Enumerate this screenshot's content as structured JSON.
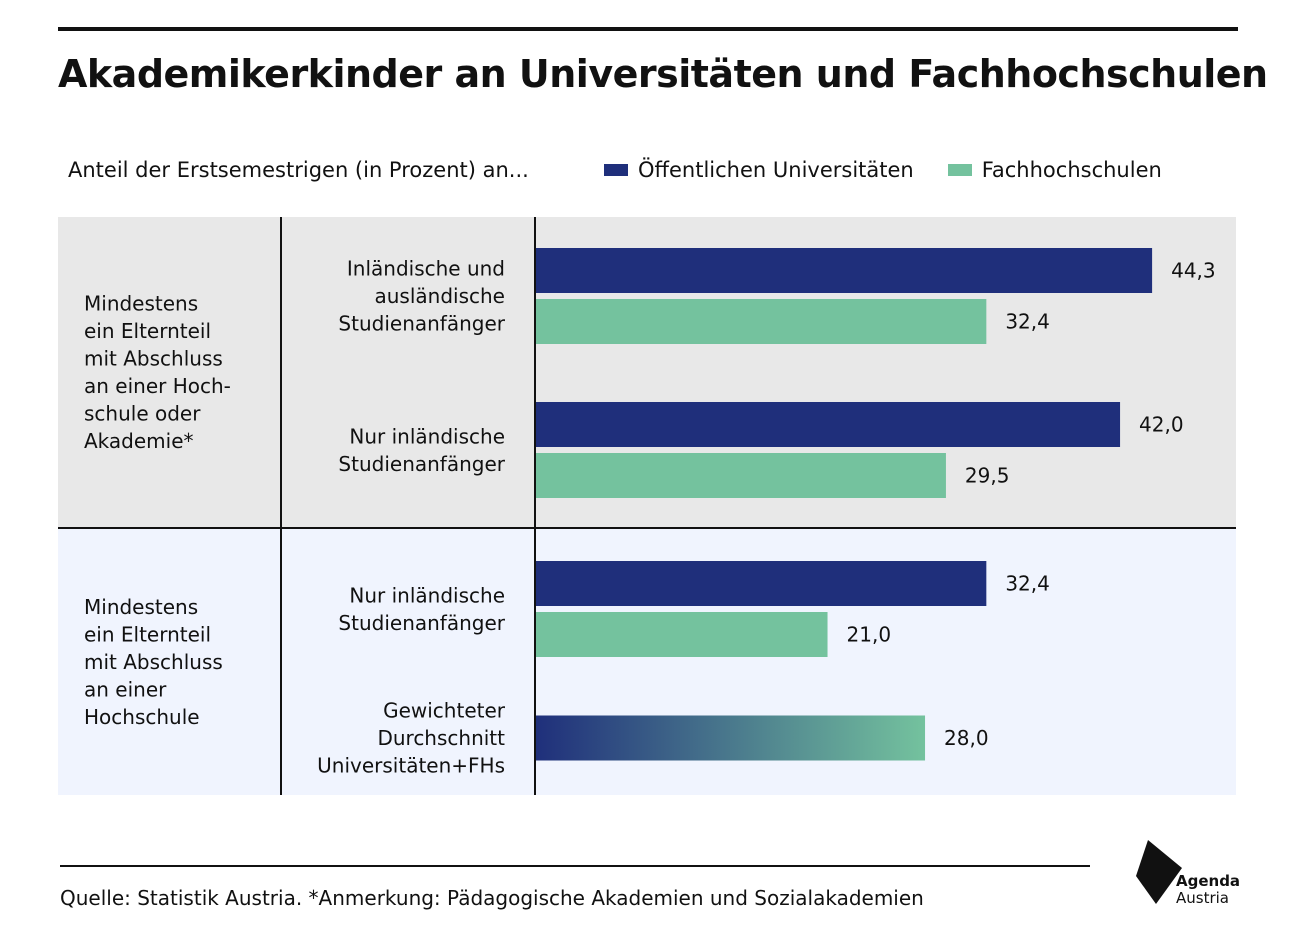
{
  "chart_data": {
    "type": "bar",
    "orientation": "horizontal",
    "title": "Akademikerkinder an Universitäten und Fachhochschulen",
    "subtitle": "Anteil der Erstsemestrigen (in Prozent) an...",
    "legend": [
      {
        "label": "Öffentlichen Universitäten",
        "color": "#1f2f7b"
      },
      {
        "label": "Fachhochschulen",
        "color": "#74c29e"
      }
    ],
    "groups": [
      {
        "label": [
          "Mindestens",
          "ein Elternteil",
          "mit Abschluss",
          "an einer Hoch-",
          "schule oder",
          "Akademie*"
        ],
        "background": "#e8e8e8",
        "rows": [
          {
            "label": [
              "Inländische und",
              "ausländische",
              "Studienanfänger"
            ],
            "bars": [
              {
                "series": "Öffentlichen Universitäten",
                "value": 44.3,
                "display": "44,3"
              },
              {
                "series": "Fachhochschulen",
                "value": 32.4,
                "display": "32,4"
              }
            ]
          },
          {
            "label": [
              "Nur inländische",
              "Studienanfänger"
            ],
            "bars": [
              {
                "series": "Öffentlichen Universitäten",
                "value": 42.0,
                "display": "42,0"
              },
              {
                "series": "Fachhochschulen",
                "value": 29.5,
                "display": "29,5"
              }
            ]
          }
        ]
      },
      {
        "label": [
          "Mindestens",
          "ein Elternteil",
          "mit Abschluss",
          "an einer",
          "Hochschule"
        ],
        "background": "#f0f4fe",
        "rows": [
          {
            "label": [
              "Nur inländische",
              "Studienanfänger"
            ],
            "bars": [
              {
                "series": "Öffentlichen Universitäten",
                "value": 32.4,
                "display": "32,4"
              },
              {
                "series": "Fachhochschulen",
                "value": 21.0,
                "display": "21,0"
              }
            ]
          },
          {
            "label": [
              "Gewichteter",
              "Durchschnitt",
              "Universitäten+FHs"
            ],
            "bars": [
              {
                "series": "gradient",
                "value": 28.0,
                "display": "28,0"
              }
            ]
          }
        ]
      }
    ]
  },
  "footer": {
    "source": "Quelle: Statistik Austria.  *Anmerkung: Pädagogische Akademien und Sozialakademien"
  },
  "logo": {
    "line1": "Agenda",
    "line2": "Austria"
  },
  "colors": {
    "universities": "#1f2f7b",
    "fachhochschulen": "#74c29e"
  }
}
